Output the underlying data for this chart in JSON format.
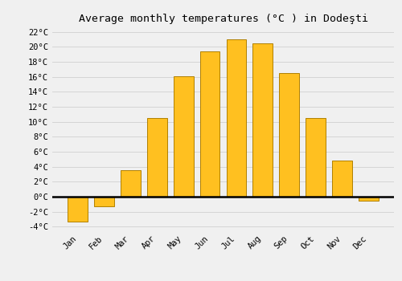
{
  "title": "Average monthly temperatures (°C ) in Dodeşti",
  "months": [
    "Jan",
    "Feb",
    "Mar",
    "Apr",
    "May",
    "Jun",
    "Jul",
    "Aug",
    "Sep",
    "Oct",
    "Nov",
    "Dec"
  ],
  "values": [
    -3.3,
    -1.3,
    3.5,
    10.5,
    16.1,
    19.4,
    21.0,
    20.5,
    16.5,
    10.5,
    4.8,
    -0.5
  ],
  "bar_color": "#FFC020",
  "bar_edge_color": "#B08000",
  "background_color": "#F0F0F0",
  "grid_color": "#D0D0D0",
  "zero_line_color": "#000000",
  "ylim": [
    -4.5,
    22.5
  ],
  "yticks": [
    -4,
    -2,
    0,
    2,
    4,
    6,
    8,
    10,
    12,
    14,
    16,
    18,
    20,
    22
  ],
  "title_fontsize": 9.5,
  "tick_fontsize": 7.5,
  "font_family": "monospace"
}
